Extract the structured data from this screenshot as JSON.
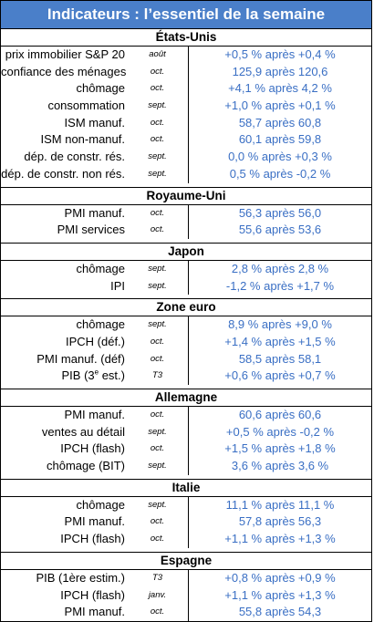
{
  "title": "Indicateurs : l’essentiel de la semaine",
  "sections": [
    {
      "name": "États-Unis",
      "rows": [
        {
          "label": "prix immobilier S&P 20",
          "period": "août",
          "value": "+0,5 % après +0,4 %"
        },
        {
          "label": "confiance des ménages",
          "period": "oct.",
          "value": "125,9 après 120,6"
        },
        {
          "label": "chômage",
          "period": "oct.",
          "value": "+4,1 % après 4,2 %"
        },
        {
          "label": "consommation",
          "period": "sept.",
          "value": "+1,0 % après +0,1 %"
        },
        {
          "label": "ISM manuf.",
          "period": "oct.",
          "value": "58,7 après 60,8"
        },
        {
          "label": "ISM non-manuf.",
          "period": "oct.",
          "value": "60,1 après 59,8"
        },
        {
          "label": "dép. de constr. rés.",
          "period": "sept.",
          "value": "0,0 % après +0,3 %"
        },
        {
          "label": "dép. de constr. non rés.",
          "period": "sept.",
          "value": "0,5 % après -0,2 %"
        }
      ]
    },
    {
      "name": "Royaume-Uni",
      "rows": [
        {
          "label": "PMI manuf.",
          "period": "oct.",
          "value": "56,3 après 56,0"
        },
        {
          "label": "PMI services",
          "period": "oct.",
          "value": "55,6 après 53,6"
        }
      ]
    },
    {
      "name": "Japon",
      "rows": [
        {
          "label": "chômage",
          "period": "sept.",
          "value": "2,8 % après 2,8 %"
        },
        {
          "label": "IPI",
          "period": "sept.",
          "value": "-1,2 % après +1,7 %"
        }
      ]
    },
    {
      "name": "Zone euro",
      "rows": [
        {
          "label": "chômage",
          "period": "sept.",
          "value": "8,9 % après +9,0 %"
        },
        {
          "label": "IPCH (déf.)",
          "period": "oct.",
          "value": "+1,4 % après +1,5 %"
        },
        {
          "label": "PMI manuf. (déf)",
          "period": "oct.",
          "value": "58,5 après 58,1"
        },
        {
          "label": "PIB (3e est.)",
          "period": "T3",
          "value": "+0,6 % après +0,7 %"
        }
      ]
    },
    {
      "name": "Allemagne",
      "rows": [
        {
          "label": "PMI manuf.",
          "period": "oct.",
          "value": "60,6 après 60,6"
        },
        {
          "label": "ventes au détail",
          "period": "sept.",
          "value": "+0,5 % après -0,2 %"
        },
        {
          "label": "IPCH (flash)",
          "period": "oct.",
          "value": "+1,5 % après +1,8 %"
        },
        {
          "label": "chômage (BIT)",
          "period": "sept.",
          "value": "3,6 % après 3,6 %"
        }
      ]
    },
    {
      "name": "Italie",
      "rows": [
        {
          "label": "chômage",
          "period": "sept.",
          "value": "11,1 % après 11,1 %"
        },
        {
          "label": "PMI manuf.",
          "period": "oct.",
          "value": "57,8 après 56,3"
        },
        {
          "label": "IPCH (flash)",
          "period": "oct.",
          "value": "+1,1 %  après +1,3 %"
        }
      ]
    },
    {
      "name": "Espagne",
      "rows": [
        {
          "label": "PIB (1ère estim.)",
          "period": "T3",
          "value": "+0,8 % après +0,9 %"
        },
        {
          "label": "IPCH (flash)",
          "period": "janv.",
          "value": "+1,1 % après +1,3 %"
        },
        {
          "label": "PMI manuf.",
          "period": "oct.",
          "value": "55,8 après 54,3"
        }
      ]
    }
  ]
}
